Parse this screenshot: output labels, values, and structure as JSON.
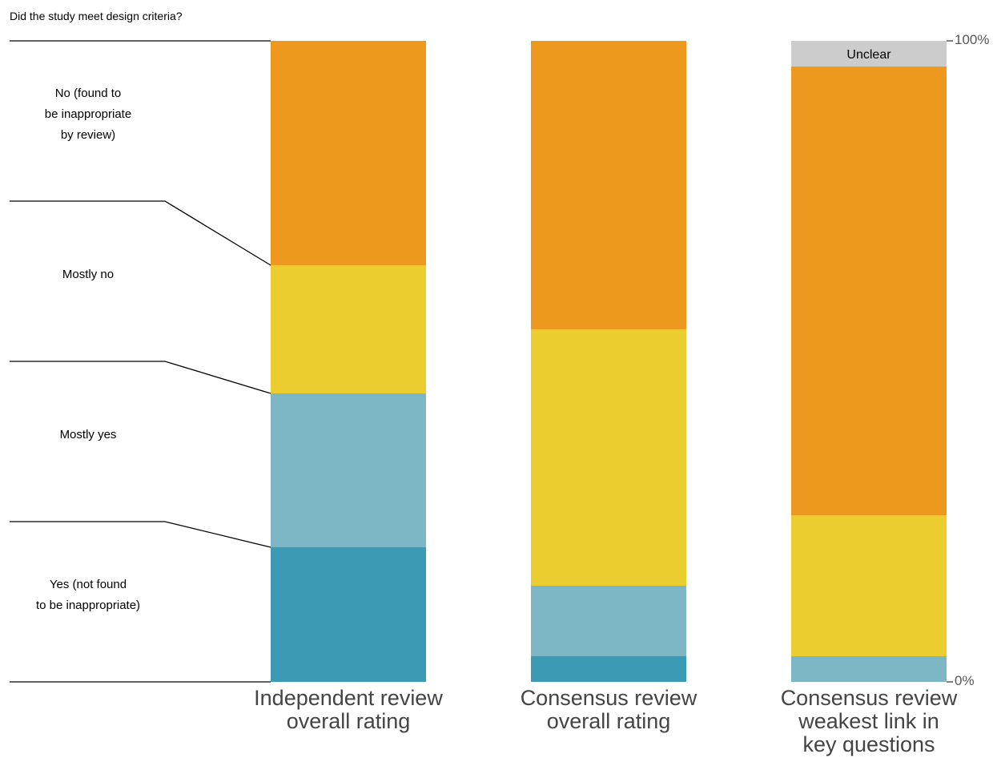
{
  "title": "Did the study meet design criteria?",
  "chart_data": {
    "type": "bar",
    "stacked": true,
    "normalized": true,
    "categories": [
      "Independent review\noverall rating",
      "Consensus review\noverall rating",
      "Consensus review\nweakest link in\nkey questions"
    ],
    "series": [
      {
        "name": "Yes (not found\nto be inappropriate)",
        "color": "#3b9ab4",
        "values": [
          21,
          4,
          0
        ]
      },
      {
        "name": "Mostly yes",
        "color": "#7db7c6",
        "values": [
          24,
          11,
          4
        ]
      },
      {
        "name": "Mostly no",
        "color": "#ebcd2f",
        "values": [
          20,
          40,
          22
        ]
      },
      {
        "name": "No (found to\nbe inappropriate\nby review)",
        "color": "#ed991f",
        "values": [
          35,
          45,
          70
        ]
      },
      {
        "name": "Unclear",
        "color": "#cccccc",
        "values": [
          0,
          0,
          4
        ]
      }
    ],
    "ylim": [
      0,
      100
    ],
    "yticks": [
      "0%",
      "100%"
    ],
    "legend_placement": "left",
    "grid": false
  }
}
